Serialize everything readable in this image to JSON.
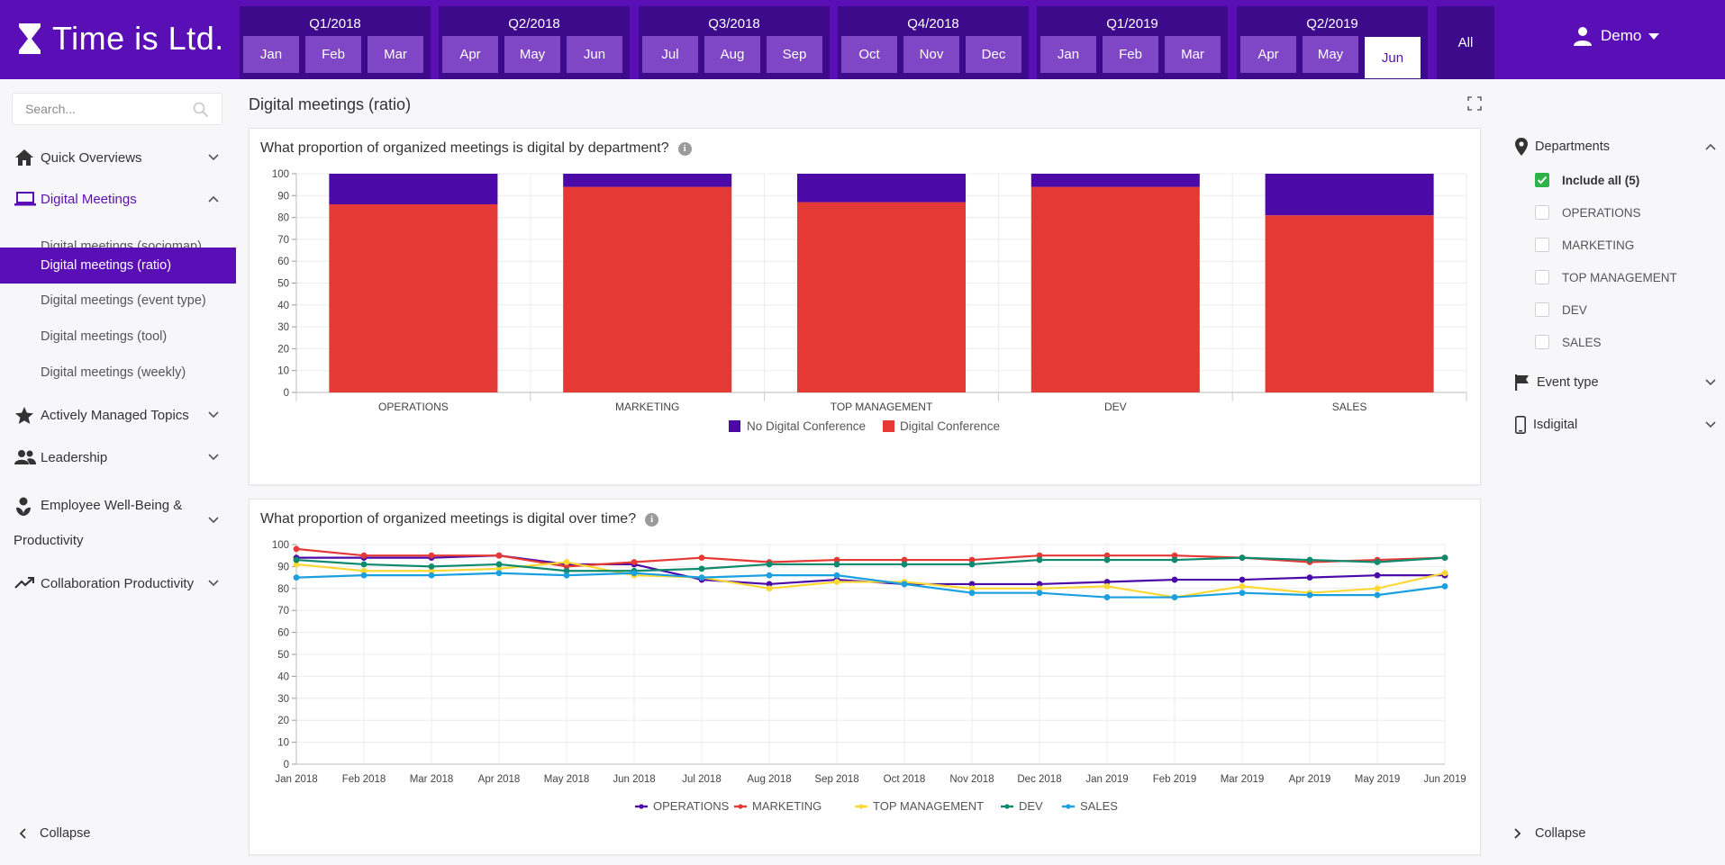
{
  "brand": {
    "name": "Time is Ltd."
  },
  "timeline": {
    "quarters": [
      {
        "label": "Q1/2018",
        "months": [
          "Jan",
          "Feb",
          "Mar"
        ]
      },
      {
        "label": "Q2/2018",
        "months": [
          "Apr",
          "May",
          "Jun"
        ]
      },
      {
        "label": "Q3/2018",
        "months": [
          "Jul",
          "Aug",
          "Sep"
        ]
      },
      {
        "label": "Q4/2018",
        "months": [
          "Oct",
          "Nov",
          "Dec"
        ]
      },
      {
        "label": "Q1/2019",
        "months": [
          "Jan",
          "Feb",
          "Mar"
        ]
      },
      {
        "label": "Q2/2019",
        "months": [
          "Apr",
          "May",
          "Jun"
        ]
      }
    ],
    "selected": "Q2/2019 Jun",
    "all_label": "All"
  },
  "user": {
    "name": "Demo"
  },
  "sidebar": {
    "search_placeholder": "Search...",
    "items": [
      {
        "label": "Quick Overviews",
        "icon": "home-icon"
      },
      {
        "label": "Digital Meetings",
        "icon": "laptop-icon",
        "children": [
          "Digital meetings (sociomap)",
          "Digital meetings (ratio)",
          "Digital meetings (event type)",
          "Digital meetings (tool)",
          "Digital meetings (weekly)"
        ],
        "active_child": "Digital meetings (ratio)"
      },
      {
        "label": "Actively Managed Topics",
        "icon": "star-icon"
      },
      {
        "label": "Leadership",
        "icon": "people-icon"
      },
      {
        "label_line1": "Employee Well-Being &",
        "label_line2": "Productivity",
        "icon": "wellbeing-icon"
      },
      {
        "label": "Collaboration Productivity",
        "icon": "trending-up-icon"
      }
    ],
    "collapse_label": "Collapse"
  },
  "page": {
    "title": "Digital meetings (ratio)"
  },
  "filters": {
    "departments_label": "Departments",
    "options": [
      {
        "label": "Include all (5)",
        "checked": true
      },
      {
        "label": "OPERATIONS",
        "checked": false
      },
      {
        "label": "MARKETING",
        "checked": false
      },
      {
        "label": "TOP MANAGEMENT",
        "checked": false
      },
      {
        "label": "DEV",
        "checked": false
      },
      {
        "label": "SALES",
        "checked": false
      }
    ],
    "event_type_label": "Event type",
    "isdigital_label": "Isdigital",
    "collapse_label": "Collapse"
  },
  "colors": {
    "brand": "#5a0fb6",
    "no_digital": "#4b0aa8",
    "digital": "#e53935",
    "operations": "#4b0aa8",
    "marketing": "#e53935",
    "top_management": "#fdd835",
    "dev": "#0e8a6e",
    "sales": "#1aa0e0"
  },
  "chart_data": [
    {
      "type": "bar",
      "stacked": true,
      "title": "What proportion of organized meetings is digital by department?",
      "categories": [
        "OPERATIONS",
        "MARKETING",
        "TOP MANAGEMENT",
        "DEV",
        "SALES"
      ],
      "series": [
        {
          "name": "Digital Conference",
          "values": [
            86,
            94,
            87,
            94,
            81
          ]
        },
        {
          "name": "No Digital Conference",
          "values": [
            14,
            6,
            13,
            6,
            19
          ]
        }
      ],
      "ylim": [
        0,
        100
      ],
      "yticks": [
        0,
        10,
        20,
        30,
        40,
        50,
        60,
        70,
        80,
        90,
        100
      ],
      "legend": "bottom",
      "grid": true
    },
    {
      "type": "line",
      "title": "What proportion of organized meetings is digital over time?",
      "x": [
        "Jan 2018",
        "Feb 2018",
        "Mar 2018",
        "Apr 2018",
        "May 2018",
        "Jun 2018",
        "Jul 2018",
        "Aug 2018",
        "Sep 2018",
        "Oct 2018",
        "Nov 2018",
        "Dec 2018",
        "Jan 2019",
        "Feb 2019",
        "Mar 2019",
        "Apr 2019",
        "May 2019",
        "Jun 2019"
      ],
      "series": [
        {
          "name": "OPERATIONS",
          "values": [
            94,
            94,
            94,
            95,
            91,
            91,
            84,
            82,
            84,
            82,
            82,
            82,
            83,
            84,
            84,
            85,
            86,
            86
          ]
        },
        {
          "name": "MARKETING",
          "values": [
            98,
            95,
            95,
            95,
            90,
            92,
            94,
            92,
            93,
            93,
            93,
            95,
            95,
            95,
            94,
            92,
            93,
            94
          ]
        },
        {
          "name": "TOP MANAGEMENT",
          "values": [
            91,
            88,
            88,
            89,
            92,
            86,
            85,
            80,
            83,
            83,
            80,
            80,
            81,
            76,
            81,
            78,
            80,
            87
          ]
        },
        {
          "name": "DEV",
          "values": [
            93,
            91,
            90,
            91,
            88,
            88,
            89,
            91,
            91,
            91,
            91,
            93,
            93,
            93,
            94,
            93,
            92,
            94
          ]
        },
        {
          "name": "SALES",
          "values": [
            85,
            86,
            86,
            87,
            86,
            87,
            85,
            86,
            86,
            82,
            78,
            78,
            76,
            76,
            78,
            77,
            77,
            81
          ]
        }
      ],
      "ylim": [
        0,
        100
      ],
      "yticks": [
        0,
        10,
        20,
        30,
        40,
        50,
        60,
        70,
        80,
        90,
        100
      ],
      "legend": "bottom",
      "grid": true
    }
  ]
}
